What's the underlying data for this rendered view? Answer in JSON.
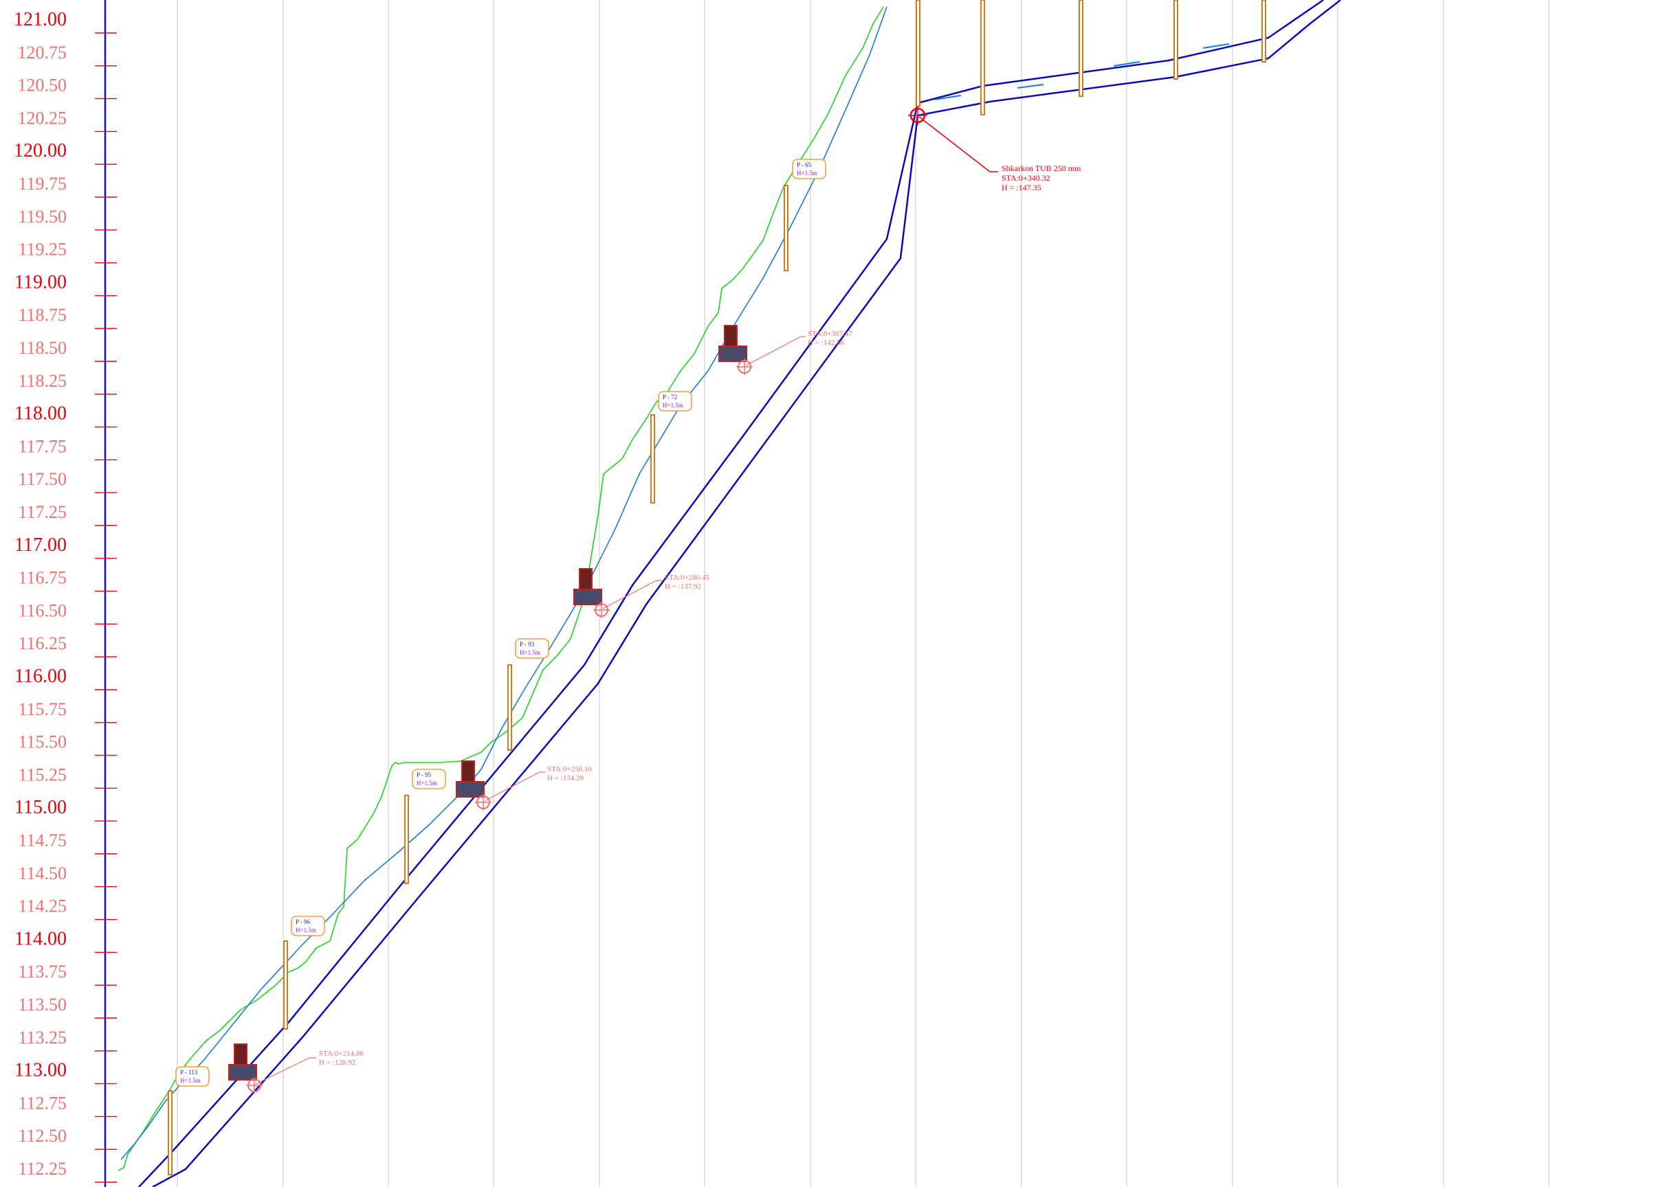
{
  "axis": {
    "elevation_labels": [
      {
        "text": "121.00",
        "major": true
      },
      {
        "text": "120.75",
        "major": false
      },
      {
        "text": "120.50",
        "major": false
      },
      {
        "text": "120.25",
        "major": false
      },
      {
        "text": "120.00",
        "major": true
      },
      {
        "text": "119.75",
        "major": false
      },
      {
        "text": "119.50",
        "major": false
      },
      {
        "text": "119.25",
        "major": false
      },
      {
        "text": "119.00",
        "major": true
      },
      {
        "text": "118.75",
        "major": false
      },
      {
        "text": "118.50",
        "major": false
      },
      {
        "text": "118.25",
        "major": false
      },
      {
        "text": "118.00",
        "major": true
      },
      {
        "text": "117.75",
        "major": false
      },
      {
        "text": "117.50",
        "major": false
      },
      {
        "text": "117.25",
        "major": false
      },
      {
        "text": "117.00",
        "major": true
      },
      {
        "text": "116.75",
        "major": false
      },
      {
        "text": "116.50",
        "major": false
      },
      {
        "text": "116.25",
        "major": false
      },
      {
        "text": "116.00",
        "major": true
      },
      {
        "text": "115.75",
        "major": false
      },
      {
        "text": "115.50",
        "major": false
      },
      {
        "text": "115.25",
        "major": false
      },
      {
        "text": "115.00",
        "major": true
      },
      {
        "text": "114.75",
        "major": false
      },
      {
        "text": "114.50",
        "major": false
      },
      {
        "text": "114.25",
        "major": false
      },
      {
        "text": "114.00",
        "major": true
      },
      {
        "text": "113.75",
        "major": false
      },
      {
        "text": "113.50",
        "major": false
      },
      {
        "text": "113.25",
        "major": false
      },
      {
        "text": "113.00",
        "major": true
      },
      {
        "text": "112.75",
        "major": false
      },
      {
        "text": "112.50",
        "major": false
      },
      {
        "text": "112.25",
        "major": false
      }
    ]
  },
  "manholes": [
    {
      "id": "mh-113",
      "line1": "P - 113",
      "line2": "H=1.5m"
    },
    {
      "id": "mh-96a",
      "line1": "P - 96",
      "line2": "H=1.5m"
    },
    {
      "id": "mh-95",
      "line1": "P - 95",
      "line2": "H=1.5m"
    },
    {
      "id": "mh-93",
      "line1": "P - 93",
      "line2": "H=1.5m"
    },
    {
      "id": "mh-72",
      "line1": "P - 72",
      "line2": "H=1.5m"
    },
    {
      "id": "mh-65",
      "line1": "P - 65",
      "line2": "H=1.5m"
    }
  ],
  "station_callouts": [
    {
      "id": "sta-214",
      "line1": "STA:0+214.86",
      "line2": "H = :128.92"
    },
    {
      "id": "sta-258",
      "line1": "STA:0+258.10",
      "line2": "H = :134.29"
    },
    {
      "id": "sta-280",
      "line1": "STA:0+280.45",
      "line2": "H = :137.92"
    },
    {
      "id": "sta-307",
      "line1": "STA:0+307.47",
      "line2": "H = :142.56"
    }
  ],
  "outfall_note": {
    "line1": "Shkarkon TUB 250 mm",
    "line2": "STA:0+340.32",
    "line3": "H = :147.35"
  },
  "colors": {
    "pipe": "#0a0ab4",
    "ground_green": "#22d022",
    "ground_blue": "#1a7ad8",
    "manhole": "#d07a20",
    "axis": "#0a0ab4",
    "label_major": "#e8000b",
    "label_minor": "#f07070",
    "grid": "#d8d8d8"
  }
}
